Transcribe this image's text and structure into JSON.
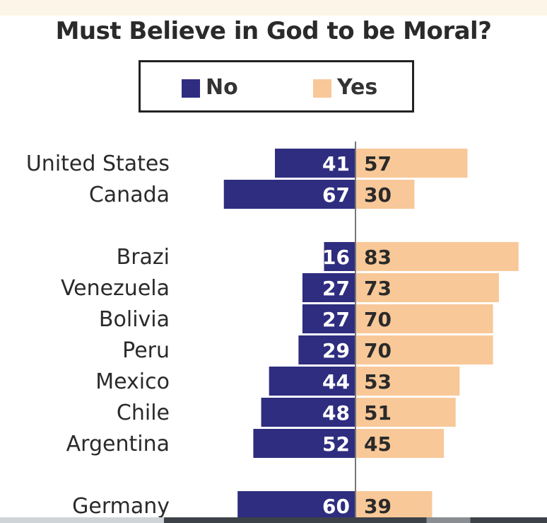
{
  "chart_data": {
    "type": "bar",
    "orientation": "horizontal-diverging",
    "title": "Must Believe in God to be Moral?",
    "legend": [
      {
        "name": "No",
        "color": "#2e2d7f"
      },
      {
        "name": "Yes",
        "color": "#f8c898"
      }
    ],
    "categories": [
      "United States",
      "Canada",
      "Brazi",
      "Venezuela",
      "Bolivia",
      "Peru",
      "Mexico",
      "Chile",
      "Argentina",
      "Germany"
    ],
    "series": [
      {
        "name": "No",
        "color": "#2e2d7f",
        "values": [
          41,
          67,
          16,
          27,
          27,
          29,
          44,
          48,
          52,
          60
        ]
      },
      {
        "name": "Yes",
        "color": "#f8c898",
        "values": [
          57,
          30,
          83,
          73,
          70,
          70,
          53,
          51,
          45,
          39
        ]
      }
    ],
    "groups": [
      [
        "United States",
        "Canada"
      ],
      [
        "Brazi",
        "Venezuela",
        "Bolivia",
        "Peru",
        "Mexico",
        "Chile",
        "Argentina"
      ],
      [
        "Germany"
      ]
    ],
    "legend_position": "top-center"
  }
}
